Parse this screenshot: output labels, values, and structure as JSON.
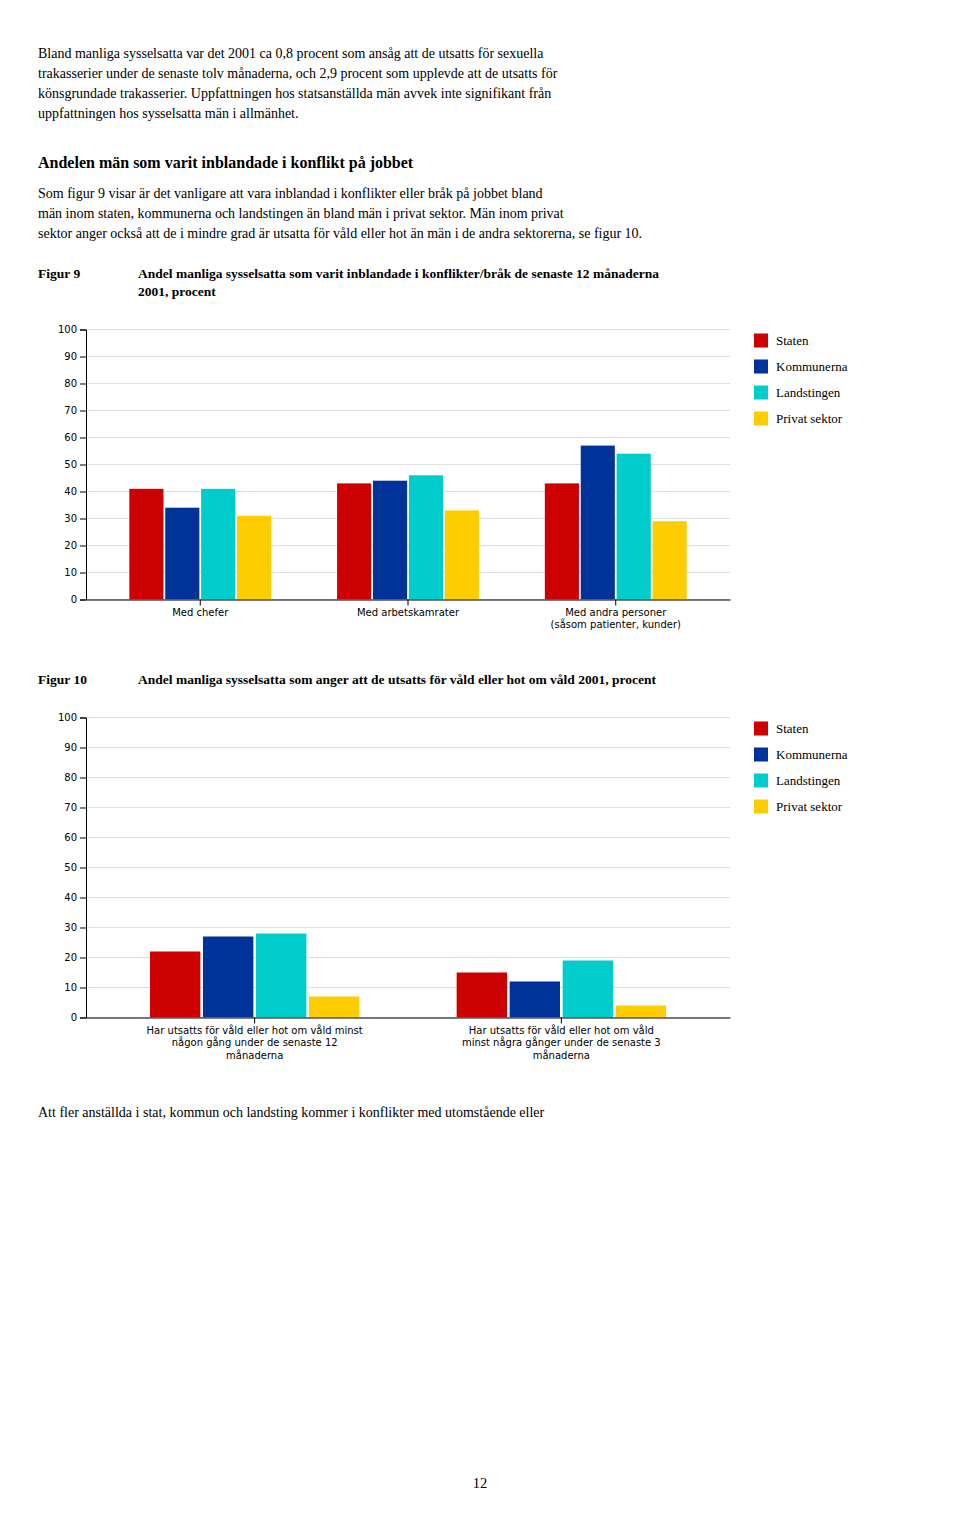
{
  "page": {
    "paragraph_top": [
      "Bland manliga sysselsatta var det 2001 ca 0,8 procent som ansåg att de utsatts för sexuella",
      "trakasserier under de senaste tolv månaderna, och 2,9 procent som upplevde att de utsatts för",
      "könsgrundade trakasserier. Uppfattningen hos statsanställda män avvek inte signifikant från",
      "uppfattningen hos sysselsatta män i allmänhet."
    ],
    "section_title": "Andelen män som varit inblandade i konflikt på jobbet",
    "section_text": [
      "Som figur 9 visar är det vanligare att vara inblandad i konflikter eller bråk på jobbet bland",
      "män inom staten, kommunerna och landstingen än bland män i privat sektor. Män inom privat",
      "sektor anger också att de i mindre grad är utsatta för våld eller hot än män i de andra sektorerna, se figur 10."
    ],
    "bottom_text": "Att fler anställda i stat, kommun och landsting kommer i konflikter med utomstående eller",
    "page_number": "12"
  },
  "chart_data": [
    {
      "type": "bar",
      "figure_label": "Figur 9",
      "title": "Andel manliga sysselsatta som varit inblandade i konflikter/bråk de senaste 12 månaderna\n2001, procent",
      "categories": [
        "Med chefer",
        "Med arbetskamrater",
        "Med andra personer\n(såsom patienter, kunder)"
      ],
      "series": [
        {
          "name": "Staten",
          "color": "#CC0000",
          "values": [
            41,
            43,
            43
          ]
        },
        {
          "name": "Kommunerna",
          "color": "#003399",
          "values": [
            34,
            44,
            57
          ]
        },
        {
          "name": "Landstingen",
          "color": "#00CCCC",
          "values": [
            41,
            46,
            54
          ]
        },
        {
          "name": "Privat sektor",
          "color": "#FFCC00",
          "values": [
            31,
            33,
            29
          ]
        }
      ],
      "ylim": [
        0,
        100
      ],
      "yticks": [
        0,
        10,
        20,
        30,
        40,
        50,
        60,
        70,
        80,
        90,
        100
      ],
      "grid": true,
      "legend": "right"
    },
    {
      "type": "bar",
      "figure_label": "Figur 10",
      "title": "Andel manliga sysselsatta som anger att de utsatts för våld eller hot om våld 2001, procent",
      "categories": [
        "Har utsatts för våld eller hot om våld minst\nnågon gång under de senaste 12\nmånaderna",
        "Har utsatts för våld eller hot om våld\nminst några gånger under de senaste 3\nmånaderna"
      ],
      "series": [
        {
          "name": "Staten",
          "color": "#CC0000",
          "values": [
            22,
            15
          ]
        },
        {
          "name": "Kommunerna",
          "color": "#003399",
          "values": [
            27,
            12
          ]
        },
        {
          "name": "Landstingen",
          "color": "#00CCCC",
          "values": [
            28,
            19
          ]
        },
        {
          "name": "Privat sektor",
          "color": "#FFCC00",
          "values": [
            7,
            4
          ]
        }
      ],
      "ylim": [
        0,
        100
      ],
      "yticks": [
        0,
        10,
        20,
        30,
        40,
        50,
        60,
        70,
        80,
        90,
        100
      ],
      "grid": true,
      "legend": "right"
    }
  ]
}
